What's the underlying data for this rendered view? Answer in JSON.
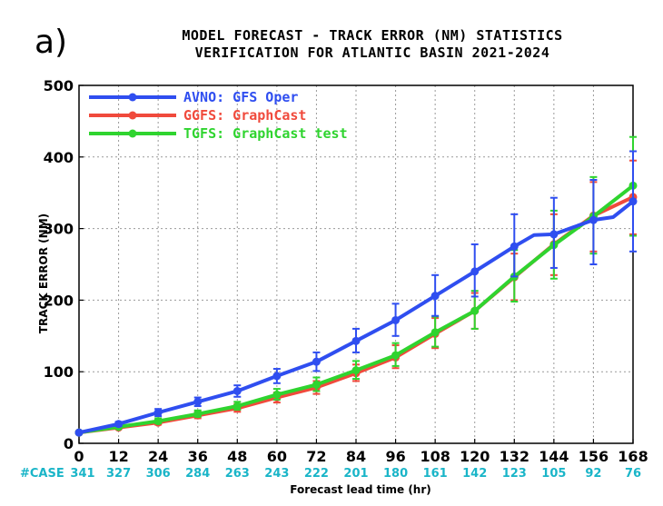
{
  "panel_label": "a)",
  "chart_data": {
    "type": "line",
    "title": "MODEL FORECAST - TRACK ERROR (NM) STATISTICS",
    "subtitle": "VERIFICATION FOR ATLANTIC BASIN 2021-2024",
    "xlabel": "Forecast lead time (hr)",
    "ylabel": "TRACK ERROR (NM)",
    "x": [
      0,
      12,
      24,
      36,
      48,
      60,
      72,
      84,
      96,
      108,
      120,
      132,
      144,
      156,
      168
    ],
    "xlim": [
      0,
      168
    ],
    "ylim": [
      0,
      500
    ],
    "yticks": [
      0,
      100,
      200,
      300,
      400,
      500
    ],
    "grid": true,
    "legend_position": "top-left",
    "case_label": "#CASE",
    "cases": [
      "341",
      "327",
      "306",
      "284",
      "263",
      "243",
      "222",
      "201",
      "180",
      "161",
      "142",
      "123",
      "105",
      "92",
      "76"
    ],
    "series": [
      {
        "name": "AVNO: GFS Oper",
        "color": "#2f4ef0",
        "marker_x": [
          0,
          12,
          24,
          36,
          48,
          60,
          72,
          84,
          96,
          108,
          120,
          132,
          144,
          156,
          168
        ],
        "values": [
          15,
          27,
          43,
          58,
          73,
          94,
          114,
          143,
          172,
          206,
          240,
          275,
          292,
          312,
          338
        ],
        "error_low": [
          15,
          24,
          38,
          52,
          65,
          84,
          101,
          127,
          150,
          178,
          205,
          233,
          245,
          250,
          268
        ],
        "error_high": [
          15,
          30,
          48,
          64,
          81,
          104,
          127,
          160,
          195,
          235,
          278,
          320,
          343,
          368,
          408
        ],
        "line_x": [
          0,
          12,
          24,
          36,
          48,
          60,
          72,
          84,
          96,
          108,
          120,
          132,
          138,
          144,
          150,
          156,
          162,
          168
        ],
        "line_y": [
          15,
          27,
          43,
          58,
          73,
          94,
          114,
          143,
          172,
          206,
          240,
          275,
          291,
          292,
          302,
          312,
          316,
          338
        ]
      },
      {
        "name": "GGFS: GraphCast",
        "color": "#f04a3c",
        "marker_x": [
          0,
          12,
          24,
          36,
          48,
          60,
          72,
          84,
          96,
          108,
          120,
          132,
          144,
          156,
          168
        ],
        "values": [
          15,
          22,
          29,
          39,
          49,
          64,
          78,
          98,
          120,
          153,
          185,
          232,
          278,
          318,
          344
        ],
        "error_low": [
          15,
          20,
          26,
          35,
          44,
          57,
          69,
          87,
          105,
          133,
          160,
          200,
          235,
          268,
          292
        ],
        "error_high": [
          15,
          24,
          33,
          44,
          55,
          71,
          87,
          110,
          137,
          175,
          210,
          265,
          320,
          365,
          395
        ]
      },
      {
        "name": "TGFS: GraphCast test",
        "color": "#2fd42f",
        "marker_x": [
          0,
          12,
          24,
          36,
          48,
          60,
          72,
          84,
          96,
          108,
          120,
          132,
          144,
          156,
          168
        ],
        "values": [
          15,
          23,
          31,
          41,
          52,
          68,
          82,
          102,
          123,
          155,
          185,
          233,
          277,
          317,
          360
        ],
        "error_low": [
          15,
          21,
          28,
          37,
          47,
          61,
          73,
          90,
          108,
          135,
          160,
          198,
          230,
          265,
          290
        ],
        "error_high": [
          15,
          25,
          35,
          46,
          58,
          76,
          92,
          115,
          140,
          177,
          213,
          270,
          325,
          372,
          428
        ]
      }
    ]
  }
}
